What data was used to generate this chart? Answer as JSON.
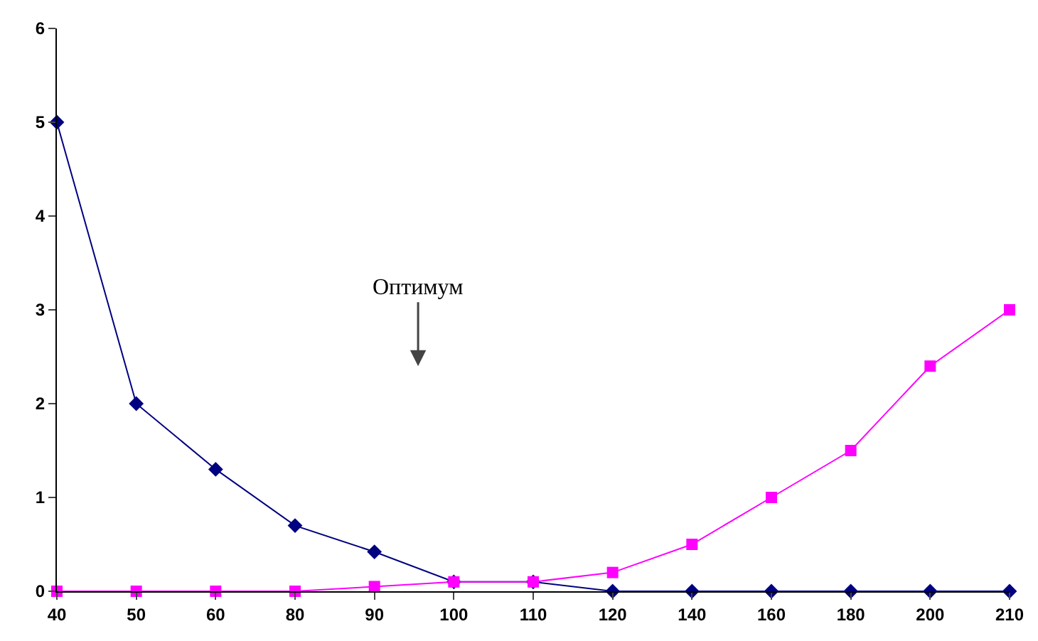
{
  "chart_data": {
    "type": "line",
    "categories": [
      "40",
      "50",
      "60",
      "80",
      "90",
      "100",
      "110",
      "120",
      "140",
      "160",
      "180",
      "200",
      "210"
    ],
    "series": [
      {
        "color": "#000080",
        "marker": "diamond",
        "values": [
          5,
          2,
          1.3,
          0.7,
          0.42,
          0.1,
          0.1,
          0,
          0,
          0,
          0,
          0,
          0
        ]
      },
      {
        "color": "#ff00ff",
        "marker": "square",
        "values": [
          0,
          0,
          0,
          0,
          0.05,
          0.1,
          0.1,
          0.2,
          0.5,
          1,
          1.5,
          2.4,
          3
        ]
      }
    ],
    "ylim": [
      0,
      6
    ],
    "yticks": [
      0,
      1,
      2,
      3,
      4,
      5,
      6
    ],
    "grid": false,
    "line_style": "solid",
    "annotations": [
      "Оптимум"
    ]
  }
}
